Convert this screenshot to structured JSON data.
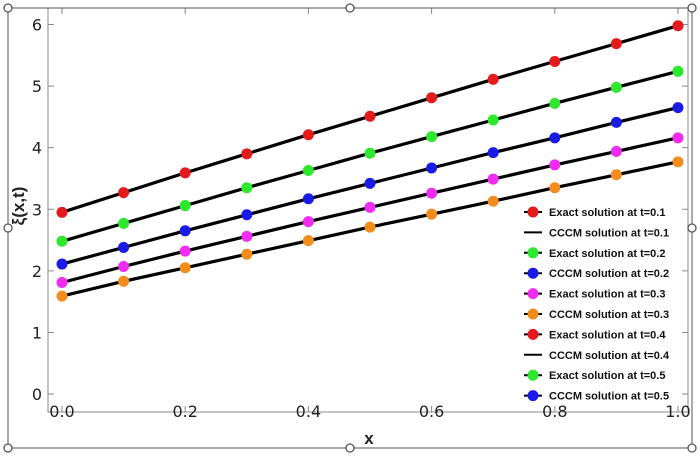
{
  "chart_data": {
    "type": "line",
    "xlabel": "x",
    "ylabel": "ξ(x,t)",
    "xlim": [
      0.0,
      1.0
    ],
    "ylim": [
      -0.15,
      6.3
    ],
    "x_ticks": [
      "0.0",
      "0.2",
      "0.4",
      "0.6",
      "0.8",
      "1.0"
    ],
    "y_ticks": [
      "0",
      "1",
      "2",
      "3",
      "4",
      "5",
      "6"
    ],
    "x": [
      0.0,
      0.1,
      0.2,
      0.3,
      0.4,
      0.5,
      0.6,
      0.7,
      0.8,
      0.9,
      1.0
    ],
    "grid": false,
    "legend_position": "right",
    "series": [
      {
        "t": 0.1,
        "values": [
          2.95,
          3.27,
          3.59,
          3.9,
          4.21,
          4.51,
          4.81,
          5.11,
          5.4,
          5.69,
          5.98
        ]
      },
      {
        "t": 0.2,
        "values": [
          2.48,
          2.77,
          3.06,
          3.35,
          3.63,
          3.91,
          4.18,
          4.45,
          4.72,
          4.98,
          5.24
        ]
      },
      {
        "t": 0.3,
        "values": [
          2.11,
          2.38,
          2.65,
          2.91,
          3.17,
          3.42,
          3.67,
          3.92,
          4.16,
          4.41,
          4.65
        ]
      },
      {
        "t": 0.4,
        "values": [
          1.81,
          2.07,
          2.32,
          2.56,
          2.8,
          3.03,
          3.26,
          3.49,
          3.72,
          3.94,
          4.16
        ]
      },
      {
        "t": 0.5,
        "values": [
          1.59,
          1.83,
          2.05,
          2.27,
          2.49,
          2.71,
          2.92,
          3.13,
          3.35,
          3.56,
          3.77
        ]
      }
    ],
    "markers": [
      {
        "t": 0.1,
        "color": "#e41a1c"
      },
      {
        "t": 0.2,
        "color": "#2ee82e"
      },
      {
        "t": 0.3,
        "color": "#1a1ae6"
      },
      {
        "t": 0.4,
        "color": "#f02cf0"
      },
      {
        "t": 0.5,
        "color": "#f28c1c"
      }
    ],
    "legend": [
      {
        "label": "Exact solution at t=0.1",
        "kind": "marker",
        "color": "#e41a1c"
      },
      {
        "label": "CCCM solution at t=0.1",
        "kind": "line",
        "color": "#000000"
      },
      {
        "label": "Exact solution at t=0.2",
        "kind": "marker",
        "color": "#2ee82e"
      },
      {
        "label": "CCCM solution at t=0.2",
        "kind": "marker",
        "color": "#1a1ae6"
      },
      {
        "label": "Exact solution at t=0.3",
        "kind": "marker",
        "color": "#f02cf0"
      },
      {
        "label": "CCCM solution at t=0.3",
        "kind": "marker",
        "color": "#f28c1c"
      },
      {
        "label": "Exact solution at t=0.4",
        "kind": "marker",
        "color": "#e41a1c"
      },
      {
        "label": "CCCM solution at t=0.4",
        "kind": "line",
        "color": "#000000"
      },
      {
        "label": "Exact solution at t=0.5",
        "kind": "marker",
        "color": "#2ee82e"
      },
      {
        "label": "CCCM solution at t=0.5",
        "kind": "marker",
        "color": "#1a1ae6"
      }
    ]
  },
  "colors": {
    "line": "#000000",
    "frame": "#888888",
    "selection_handle": "#555555"
  }
}
